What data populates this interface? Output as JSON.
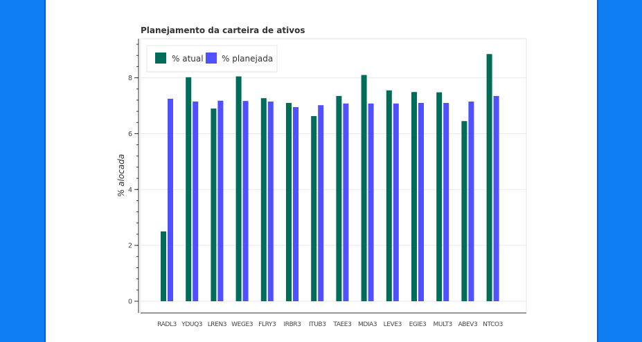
{
  "chart_data": {
    "type": "bar",
    "title": "Planejamento da carteira de ativos",
    "xlabel": "",
    "ylabel": "% alocada",
    "ylim": [
      0,
      9.4
    ],
    "yticks": [
      0,
      2,
      4,
      6,
      8
    ],
    "grid": true,
    "legend_position": "top-left",
    "categories": [
      "RADL3",
      "YDUQ3",
      "LREN3",
      "WEGE3",
      "FLRY3",
      "IRBR3",
      "ITUB3",
      "TAEE3",
      "MDIA3",
      "LEVE3",
      "EGIE3",
      "MULT3",
      "ABEV3",
      "NTCO3"
    ],
    "series": [
      {
        "name": "% atual",
        "color": "#006d5b",
        "values": [
          2.5,
          8.02,
          6.9,
          8.05,
          7.27,
          7.1,
          6.63,
          7.35,
          8.1,
          7.55,
          7.49,
          7.48,
          6.45,
          8.85
        ]
      },
      {
        "name": "% planejada",
        "color": "#5050ff",
        "values": [
          7.25,
          7.15,
          7.18,
          7.17,
          7.15,
          6.95,
          7.02,
          7.08,
          7.08,
          7.08,
          7.1,
          7.1,
          7.15,
          7.35
        ]
      }
    ]
  }
}
